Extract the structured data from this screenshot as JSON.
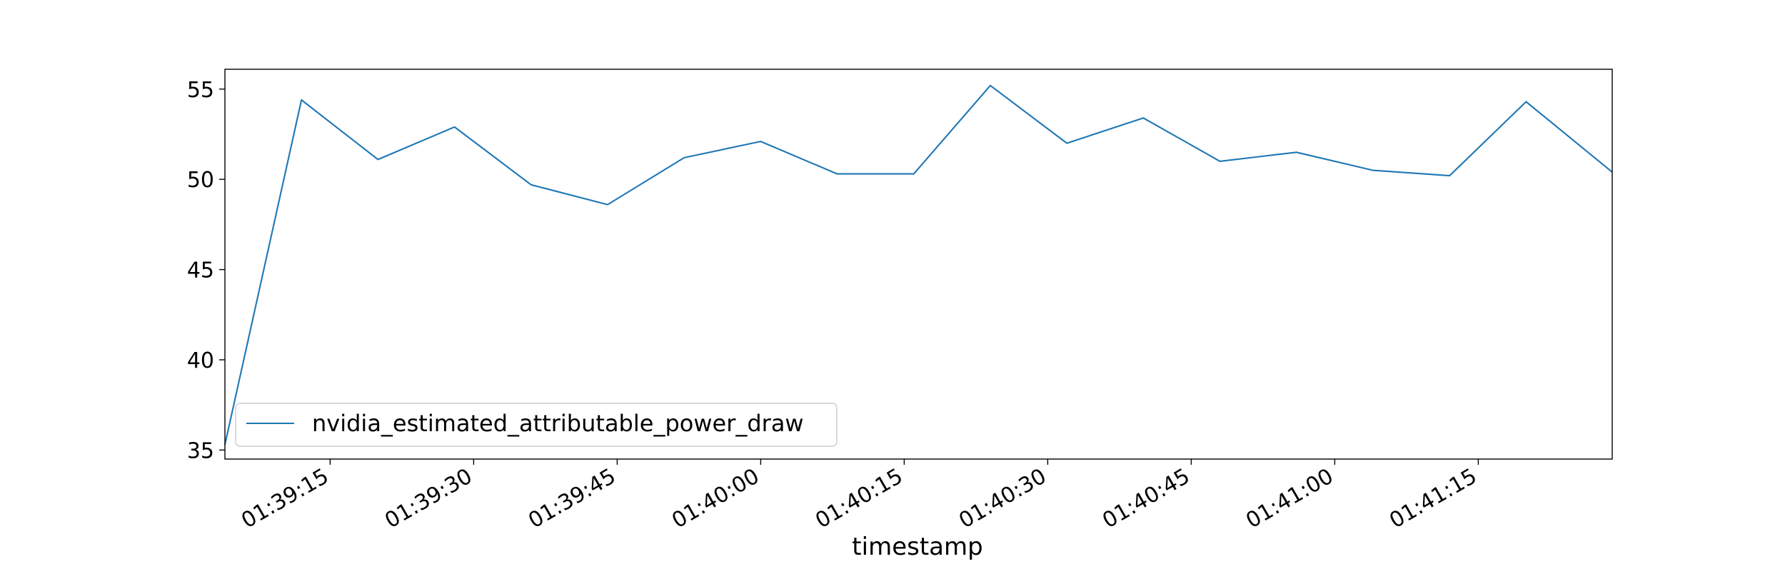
{
  "chart_data": {
    "type": "line",
    "title": "",
    "xlabel": "timestamp",
    "ylabel": "",
    "x_tick_labels": [
      "01:39:15",
      "01:39:30",
      "01:39:45",
      "01:40:00",
      "01:40:15",
      "01:40:30",
      "01:40:45",
      "01:41:00",
      "01:41:15"
    ],
    "y_tick_labels": [
      "35",
      "40",
      "45",
      "50",
      "55"
    ],
    "ylim": [
      34.5,
      56.1
    ],
    "xlim": [
      "01:39:04",
      "01:41:29"
    ],
    "grid": false,
    "legend_position": "lower-left",
    "series": [
      {
        "name": "nvidia_estimated_attributable_power_draw",
        "color": "#1f77b4",
        "x": [
          "01:39:04",
          "01:39:12",
          "01:39:20",
          "01:39:28",
          "01:39:36",
          "01:39:44",
          "01:39:52",
          "01:40:00",
          "01:40:08",
          "01:40:16",
          "01:40:24",
          "01:40:32",
          "01:40:40",
          "01:40:48",
          "01:40:56",
          "01:41:04",
          "01:41:12",
          "01:41:20",
          "01:41:29"
        ],
        "y": [
          35.3,
          54.4,
          51.1,
          52.9,
          49.7,
          48.6,
          51.2,
          52.1,
          50.3,
          50.3,
          55.2,
          52.0,
          53.4,
          51.0,
          51.5,
          50.5,
          50.2,
          54.3,
          50.4
        ]
      }
    ]
  }
}
